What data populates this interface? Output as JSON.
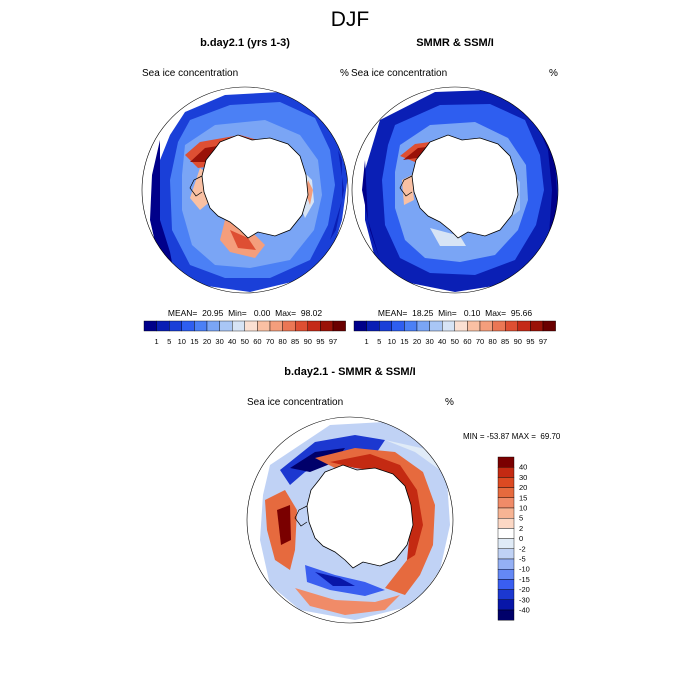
{
  "figure": {
    "title": "DJF",
    "palette": {
      "ice": [
        "#00008a",
        "#0a1fb5",
        "#1a3fd8",
        "#2e5ef0",
        "#4b80f5",
        "#7aa5f5",
        "#a9c6f5",
        "#d7e4f5",
        "#fbe0d2",
        "#f9c0a3",
        "#f49e7c",
        "#eb7755",
        "#de4f33",
        "#c42a18",
        "#9a1208",
        "#6a0000"
      ],
      "diff": [
        "#00006a",
        "#0816a8",
        "#1c38d0",
        "#3a5ef0",
        "#6488f5",
        "#94b0f5",
        "#c0d2f5",
        "#e0ebf7",
        "#ffffff",
        "#fcd8c5",
        "#f7b494",
        "#f08b68",
        "#e66a3e",
        "#dc4a22",
        "#c42a12",
        "#7a0000"
      ]
    },
    "panels": [
      {
        "id": "model",
        "title": "b.day2.1 (yrs 1-3)",
        "variable": "Sea ice concentration",
        "units": "%",
        "stats": "MEAN=  20.95  Min=   0.00  Max=  98.02"
      },
      {
        "id": "obs",
        "title": "SMMR & SSM/I",
        "variable": "Sea ice concentration",
        "units": "%",
        "stats": "MEAN=  18.25  Min=   0.10  Max=  95.66"
      },
      {
        "id": "diff",
        "title": "b.day2.1 - SMMR & SSM/I",
        "variable": "Sea ice concentration",
        "units": "%",
        "stats": "MIN = -53.87 MAX =  69.70"
      }
    ],
    "ice_colorbar": {
      "labels": [
        "1",
        "5",
        "10",
        "15",
        "20",
        "30",
        "40",
        "50",
        "60",
        "70",
        "80",
        "85",
        "90",
        "95",
        "97"
      ]
    },
    "diff_colorbar": {
      "labels": [
        "40",
        "30",
        "20",
        "15",
        "10",
        "5",
        "2",
        "0",
        "-2",
        "-5",
        "-10",
        "-15",
        "-20",
        "-30",
        "-40"
      ]
    }
  }
}
